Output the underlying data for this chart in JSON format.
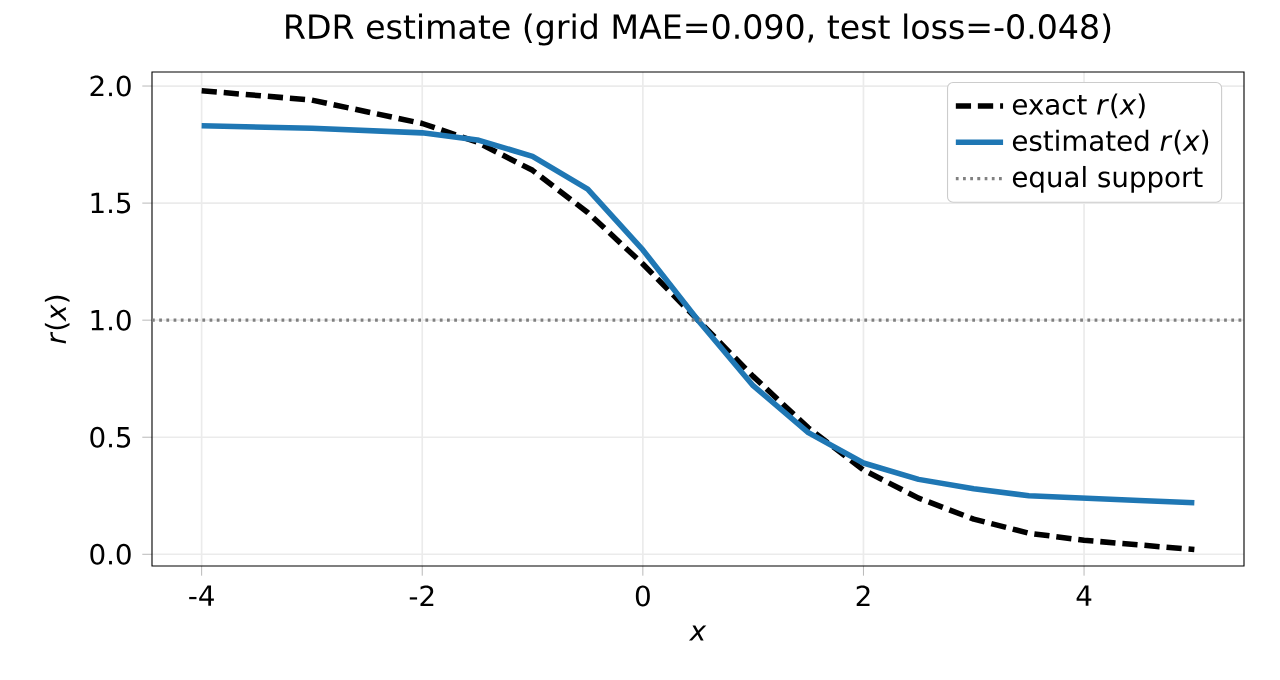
{
  "chart_data": {
    "type": "line",
    "title": "RDR estimate (grid MAE=0.090, test loss=-0.048)",
    "xlabel": "*x*",
    "ylabel": "*r*(*x*)",
    "x": [
      -4,
      -3,
      -2,
      -1.5,
      -1,
      -0.5,
      0,
      0.5,
      1,
      1.5,
      2,
      2.5,
      3,
      3.5,
      4,
      4.5,
      5
    ],
    "series": [
      {
        "name": "exact *r*(*x*)",
        "color": "#000000",
        "line_style": "dashed",
        "values": [
          1.98,
          1.94,
          1.84,
          1.76,
          1.64,
          1.46,
          1.24,
          1.0,
          0.76,
          0.54,
          0.36,
          0.24,
          0.15,
          0.09,
          0.06,
          0.04,
          0.02
        ]
      },
      {
        "name": "estimated *r*(*x*)",
        "color": "#1f77b4",
        "line_style": "solid",
        "values": [
          1.83,
          1.82,
          1.8,
          1.77,
          1.7,
          1.56,
          1.3,
          1.0,
          0.72,
          0.52,
          0.39,
          0.32,
          0.28,
          0.25,
          0.24,
          0.23,
          0.22
        ]
      }
    ],
    "ref_lines": [
      {
        "axis": "y",
        "value": 1.0,
        "label": "equal support",
        "color": "#808080",
        "line_style": "dotted"
      }
    ],
    "xlim": [
      -4.45,
      5.45
    ],
    "ylim": [
      -0.05,
      2.06
    ],
    "xticks": [
      -4,
      -2,
      0,
      2,
      4
    ],
    "yticks": [
      {
        "value": 0,
        "label": "0.0"
      },
      {
        "value": 0.5,
        "label": "0.5"
      },
      {
        "value": 1,
        "label": "1.0"
      },
      {
        "value": 1.5,
        "label": "1.5"
      },
      {
        "value": 2,
        "label": "2.0"
      }
    ],
    "grid": true,
    "legend": "top right",
    "marker": "none"
  }
}
